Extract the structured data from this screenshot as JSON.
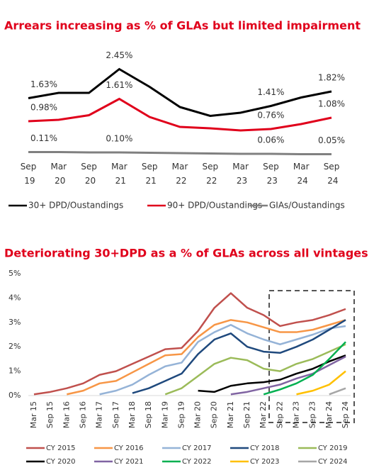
{
  "chart_data": [
    {
      "type": "line",
      "title": "Arrears increasing as % of GLAs but limited impairment",
      "categories": [
        "Sep 19",
        "Mar 20",
        "Sep 20",
        "Mar 21",
        "Sep 21",
        "Mar 22",
        "Sep 22",
        "Mar 23",
        "Sep 23",
        "Mar 24",
        "Sep 24"
      ],
      "series": [
        {
          "name": "30+ DPD/Oustandings",
          "color": "#000000",
          "values": [
            1.63,
            1.78,
            1.78,
            2.45,
            1.95,
            1.38,
            1.13,
            1.22,
            1.41,
            1.65,
            1.82
          ],
          "value_labels": [
            "1.63%",
            null,
            null,
            "2.45%",
            null,
            null,
            null,
            null,
            "1.41%",
            null,
            "1.82%"
          ]
        },
        {
          "name": "90+ DPD/Oustandings",
          "color": "#e0001b",
          "values": [
            0.98,
            1.02,
            1.15,
            1.61,
            1.1,
            0.82,
            0.78,
            0.72,
            0.76,
            0.9,
            1.08
          ],
          "value_labels": [
            "0.98%",
            null,
            null,
            "1.61%",
            null,
            null,
            null,
            null,
            "0.76%",
            null,
            "1.08%"
          ]
        },
        {
          "name": "GIAs/Oustandings",
          "color": "#808080",
          "values": [
            0.11,
            0.11,
            0.1,
            0.1,
            0.09,
            0.08,
            0.07,
            0.06,
            0.06,
            0.05,
            0.05
          ],
          "value_labels": [
            "0.11%",
            null,
            null,
            "0.10%",
            null,
            null,
            null,
            null,
            "0.06%",
            null,
            "0.05%"
          ]
        }
      ]
    },
    {
      "type": "line",
      "title": "Deteriorating 30+DPD as a % of GLAs across all vintages",
      "categories": [
        "Mar 15",
        "Sep 15",
        "Mar 16",
        "Sep 16",
        "Mar 17",
        "Sep 17",
        "Mar 18",
        "Sep 18",
        "Mar 19",
        "Sep 19",
        "Mar 20",
        "Sep 20",
        "Mar 21",
        "Sep 21",
        "Mar 22",
        "Sep 22",
        "Mar 23",
        "Sep 23",
        "Mar 24",
        "Sep 24"
      ],
      "ylim": [
        0,
        5
      ],
      "yticks": [
        {
          "value": 0,
          "label": "0%"
        },
        {
          "value": 1,
          "label": "1%"
        },
        {
          "value": 2,
          "label": "2%"
        },
        {
          "value": 3,
          "label": "3%"
        },
        {
          "value": 4,
          "label": "4%"
        },
        {
          "value": 5,
          "label": "5%"
        }
      ],
      "series": [
        {
          "name": "CY 2015",
          "color": "#c0504d",
          "values": [
            0.05,
            0.15,
            0.3,
            0.5,
            0.85,
            1.0,
            1.3,
            1.6,
            1.9,
            1.95,
            2.65,
            3.6,
            4.2,
            3.6,
            3.3,
            2.85,
            3.0,
            3.1,
            3.3,
            3.55
          ]
        },
        {
          "name": "CY 2016",
          "color": "#f79646",
          "values": [
            null,
            null,
            0.05,
            0.2,
            0.5,
            0.6,
            0.95,
            1.3,
            1.65,
            1.7,
            2.4,
            2.9,
            3.1,
            3.0,
            2.8,
            2.6,
            2.6,
            2.7,
            2.9,
            3.1
          ]
        },
        {
          "name": "CY 2017",
          "color": "#95b3d7",
          "values": [
            null,
            null,
            null,
            null,
            0.05,
            0.2,
            0.45,
            0.85,
            1.2,
            1.35,
            2.2,
            2.6,
            2.9,
            2.55,
            2.3,
            2.1,
            2.3,
            2.5,
            2.75,
            2.85
          ]
        },
        {
          "name": "CY 2018",
          "color": "#1f497d",
          "values": [
            null,
            null,
            null,
            null,
            null,
            null,
            0.1,
            0.3,
            0.6,
            0.9,
            1.7,
            2.3,
            2.55,
            2.0,
            1.8,
            1.75,
            2.0,
            2.3,
            2.7,
            3.1
          ]
        },
        {
          "name": "CY 2019",
          "color": "#9bbb59",
          "values": [
            null,
            null,
            null,
            null,
            null,
            null,
            null,
            null,
            0.05,
            0.3,
            0.8,
            1.3,
            1.55,
            1.45,
            1.1,
            1.0,
            1.3,
            1.5,
            1.8,
            2.1
          ]
        },
        {
          "name": "CY 2020",
          "color": "#000000",
          "values": [
            null,
            null,
            null,
            null,
            null,
            null,
            null,
            null,
            null,
            null,
            0.2,
            0.15,
            0.4,
            0.5,
            0.55,
            0.65,
            0.9,
            1.1,
            1.4,
            1.65
          ]
        },
        {
          "name": "CY 2021",
          "color": "#8064a2",
          "values": [
            null,
            null,
            null,
            null,
            null,
            null,
            null,
            null,
            null,
            null,
            null,
            null,
            0.05,
            0.15,
            0.3,
            0.45,
            0.7,
            0.9,
            1.25,
            1.6
          ]
        },
        {
          "name": "CY 2022",
          "color": "#00b050",
          "values": [
            null,
            null,
            null,
            null,
            null,
            null,
            null,
            null,
            null,
            null,
            null,
            null,
            null,
            null,
            0.05,
            0.25,
            0.5,
            0.85,
            1.5,
            2.2
          ]
        },
        {
          "name": "CY 2023",
          "color": "#ffc000",
          "values": [
            null,
            null,
            null,
            null,
            null,
            null,
            null,
            null,
            null,
            null,
            null,
            null,
            null,
            null,
            null,
            null,
            0.05,
            0.2,
            0.45,
            1.0
          ]
        },
        {
          "name": "CY 2024",
          "color": "#a6a6a6",
          "values": [
            null,
            null,
            null,
            null,
            null,
            null,
            null,
            null,
            null,
            null,
            null,
            null,
            null,
            null,
            null,
            null,
            null,
            null,
            0.05,
            0.3
          ]
        }
      ]
    }
  ]
}
